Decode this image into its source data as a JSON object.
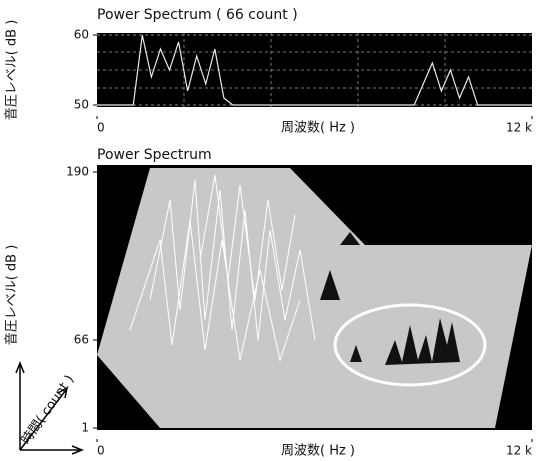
{
  "charts": [
    {
      "type": "line",
      "title": "Power Spectrum ( 66 count )",
      "x_label": "周波数( Hz )",
      "y_label": "音圧レベル( dB )",
      "x": [
        0,
        250,
        500,
        750,
        1000,
        1250,
        1500,
        1750,
        2000,
        2250,
        2500,
        2750,
        3000,
        3250,
        3500,
        3750,
        4000,
        4500,
        5000,
        5500,
        6000,
        6500,
        7000,
        7500,
        8000,
        8500,
        8750,
        9000,
        9250,
        9500,
        9750,
        10000,
        10250,
        10500,
        11000,
        11500,
        12000
      ],
      "series": [
        {
          "color": "#e8e8e8",
          "values": [
            50,
            50,
            50,
            50,
            50,
            60,
            54,
            58,
            55,
            59,
            52,
            57,
            53,
            58,
            51,
            50,
            50,
            50,
            50,
            50,
            50,
            50,
            50,
            50,
            50,
            50,
            50,
            53,
            56,
            52,
            55,
            51,
            54,
            50,
            50,
            50,
            50
          ]
        }
      ],
      "xlim": [
        0,
        12000
      ],
      "xticks": [
        0,
        {
          "value": 12000,
          "label": "12 k"
        }
      ],
      "ylim": [
        50,
        60
      ],
      "yticks": [
        50,
        60
      ],
      "grid": true
    },
    {
      "type": "waterfall",
      "title": "Power Spectrum",
      "x_label": "周波数( Hz )",
      "y_label": "音圧レベル( dB )",
      "time_label": "時間( count )",
      "xlim": [
        0,
        12000
      ],
      "xticks": [
        0,
        {
          "value": 12000,
          "label": "12 k"
        }
      ],
      "ylim": [
        1,
        190
      ],
      "yticks": [
        1,
        66,
        190
      ]
    }
  ]
}
